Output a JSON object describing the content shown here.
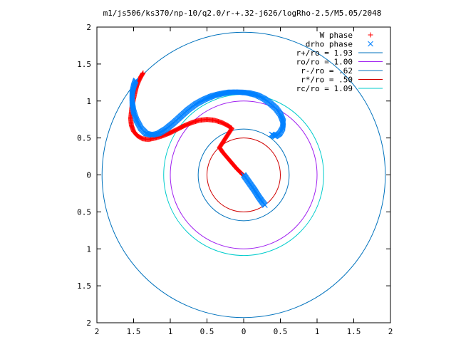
{
  "chart_data": {
    "type": "scatter",
    "title": "m1/js506/ks370/np-10/q2.0/r-+.32-j626/logRho-2.5/M5.05/2048",
    "xlim": [
      -2,
      2
    ],
    "ylim": [
      -2,
      2
    ],
    "x_tick_values": [
      -2,
      -1.5,
      -1,
      -0.5,
      0,
      0.5,
      1,
      1.5,
      2
    ],
    "x_tick_labels": [
      "2",
      "1.5",
      "1",
      "0.5",
      "0",
      "0.5",
      "1",
      "1.5",
      "2"
    ],
    "y_tick_values": [
      2,
      1.5,
      1,
      0.5,
      0,
      -0.5,
      -1,
      -1.5,
      -2
    ],
    "y_tick_labels": [
      "2",
      "1.5",
      "1",
      "0.5",
      "0",
      "0.5",
      "1",
      "1.5",
      "2"
    ],
    "legend_position": "top-right",
    "series": [
      {
        "name": "W phase",
        "marker": "plus",
        "color": "#ff0000",
        "points": [
          [
            -1.37,
            1.38
          ],
          [
            -1.4,
            1.33
          ],
          [
            -1.43,
            1.27
          ],
          [
            -1.46,
            1.2
          ],
          [
            -1.48,
            1.12
          ],
          [
            -1.5,
            1.03
          ],
          [
            -1.52,
            0.94
          ],
          [
            -1.53,
            0.85
          ],
          [
            -1.54,
            0.76
          ],
          [
            -1.53,
            0.67
          ],
          [
            -1.5,
            0.59
          ],
          [
            -1.45,
            0.53
          ],
          [
            -1.38,
            0.49
          ],
          [
            -1.3,
            0.48
          ],
          [
            -1.2,
            0.5
          ],
          [
            -1.1,
            0.53
          ],
          [
            -1.0,
            0.57
          ],
          [
            -0.9,
            0.62
          ],
          [
            -0.8,
            0.67
          ],
          [
            -0.7,
            0.71
          ],
          [
            -0.6,
            0.74
          ],
          [
            -0.5,
            0.75
          ],
          [
            -0.4,
            0.74
          ],
          [
            -0.3,
            0.71
          ],
          [
            -0.22,
            0.67
          ],
          [
            -0.16,
            0.63
          ],
          [
            -0.33,
            0.37
          ],
          [
            -0.28,
            0.3
          ],
          [
            -0.22,
            0.23
          ],
          [
            -0.16,
            0.16
          ],
          [
            -0.1,
            0.09
          ],
          [
            -0.05,
            0.04
          ],
          [
            -0.01,
            0.0
          ]
        ]
      },
      {
        "name": "drho phase",
        "marker": "cross",
        "color": "#0080ff",
        "points": [
          [
            -1.47,
            1.28
          ],
          [
            -1.5,
            1.2
          ],
          [
            -1.52,
            1.1
          ],
          [
            -1.52,
            0.98
          ],
          [
            -1.5,
            0.86
          ],
          [
            -1.46,
            0.74
          ],
          [
            -1.4,
            0.63
          ],
          [
            -1.33,
            0.56
          ],
          [
            -1.25,
            0.54
          ],
          [
            -1.16,
            0.56
          ],
          [
            -1.06,
            0.62
          ],
          [
            -0.96,
            0.7
          ],
          [
            -0.86,
            0.79
          ],
          [
            -0.76,
            0.88
          ],
          [
            -0.65,
            0.96
          ],
          [
            -0.54,
            1.02
          ],
          [
            -0.42,
            1.07
          ],
          [
            -0.3,
            1.1
          ],
          [
            -0.18,
            1.12
          ],
          [
            -0.06,
            1.12
          ],
          [
            0.06,
            1.11
          ],
          [
            0.18,
            1.08
          ],
          [
            0.28,
            1.03
          ],
          [
            0.36,
            0.97
          ],
          [
            0.44,
            0.9
          ],
          [
            0.5,
            0.82
          ],
          [
            0.54,
            0.72
          ],
          [
            0.53,
            0.63
          ],
          [
            0.49,
            0.56
          ],
          [
            0.43,
            0.52
          ],
          [
            0.38,
            0.55
          ],
          [
            0.0,
            0.0
          ],
          [
            0.05,
            -0.07
          ],
          [
            0.1,
            -0.14
          ],
          [
            0.15,
            -0.21
          ],
          [
            0.2,
            -0.29
          ],
          [
            0.25,
            -0.36
          ],
          [
            0.29,
            -0.41
          ]
        ]
      }
    ],
    "circles": [
      {
        "name": "r+/ro = 1.93",
        "r": 1.93,
        "color": "#0072bd"
      },
      {
        "name": "ro/ro = 1.00",
        "r": 1.0,
        "color": "#a020f0"
      },
      {
        "name": "r-/ro = .62",
        "r": 0.62,
        "color": "#0072bd"
      },
      {
        "name": "r*/ro = .50",
        "r": 0.5,
        "color": "#d00000"
      },
      {
        "name": "rc/ro = 1.09",
        "r": 1.09,
        "color": "#00cccc"
      }
    ]
  }
}
